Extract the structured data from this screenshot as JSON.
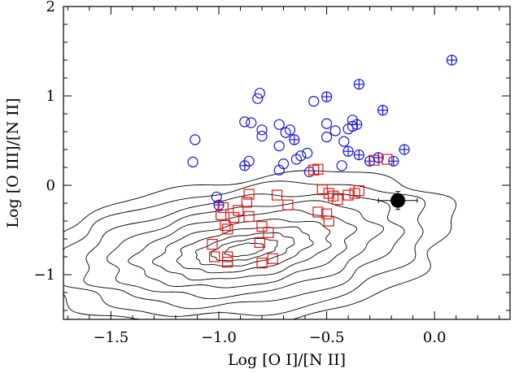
{
  "chart_data": {
    "type": "scatter",
    "xlabel": "Log [O I]/[N II]",
    "ylabel": "Log [O III]/[N II]",
    "xlim": [
      -1.72,
      0.35
    ],
    "ylim": [
      -1.5,
      2.0
    ],
    "x_ticks": [
      {
        "value": -1.5,
        "label": "−1.5"
      },
      {
        "value": -1.0,
        "label": "−1.0"
      },
      {
        "value": -0.5,
        "label": "−0.5"
      },
      {
        "value": 0.0,
        "label": "0.0"
      }
    ],
    "y_ticks": [
      {
        "value": -1,
        "label": "−1"
      },
      {
        "value": 0,
        "label": "0"
      },
      {
        "value": 1,
        "label": "1"
      },
      {
        "value": 2,
        "label": "2"
      }
    ],
    "grid": false,
    "legend": "none",
    "contours": {
      "color": "#000000",
      "center": [
        -0.88,
        -0.72
      ],
      "major_axis_angle_deg": 32,
      "levels": [
        {
          "a": 0.1,
          "b": 0.06
        },
        {
          "a": 0.17,
          "b": 0.1
        },
        {
          "a": 0.25,
          "b": 0.15
        },
        {
          "a": 0.34,
          "b": 0.21
        },
        {
          "a": 0.44,
          "b": 0.28
        },
        {
          "a": 0.55,
          "b": 0.36
        },
        {
          "a": 0.67,
          "b": 0.45
        },
        {
          "a": 0.79,
          "b": 0.55
        },
        {
          "a": 0.92,
          "b": 0.66
        },
        {
          "a": 1.05,
          "b": 0.77
        }
      ]
    },
    "series": [
      {
        "marker": "circle",
        "color": "#1515e0",
        "points": [
          [
            -1.11,
            0.51
          ],
          [
            -1.12,
            0.26
          ],
          [
            -1.01,
            -0.13
          ],
          [
            -0.88,
            0.71
          ],
          [
            -0.85,
            0.7
          ],
          [
            -0.82,
            0.97
          ],
          [
            -0.81,
            1.03
          ],
          [
            -0.8,
            0.62
          ],
          [
            -0.8,
            0.55
          ],
          [
            -0.86,
            0.27
          ],
          [
            -0.72,
            0.68
          ],
          [
            -0.69,
            0.59
          ],
          [
            -0.67,
            0.62
          ],
          [
            -0.72,
            0.44
          ],
          [
            -0.7,
            0.24
          ],
          [
            -0.72,
            0.17
          ],
          [
            -0.64,
            0.29
          ],
          [
            -0.62,
            0.33
          ],
          [
            -0.59,
            0.36
          ],
          [
            -0.58,
            0.15
          ],
          [
            -0.56,
            0.94
          ],
          [
            -0.5,
            0.69
          ],
          [
            -0.5,
            0.54
          ],
          [
            -0.46,
            0.61
          ],
          [
            -0.42,
            0.49
          ],
          [
            -0.43,
            0.22
          ],
          [
            -0.4,
            0.63
          ],
          [
            -0.38,
            0.73
          ],
          [
            -0.38,
            0.66
          ]
        ]
      },
      {
        "marker": "circle-cross",
        "color": "#1515e0",
        "points": [
          [
            -1.0,
            -0.22
          ],
          [
            -0.88,
            0.22
          ],
          [
            -0.65,
            0.51
          ],
          [
            -0.5,
            0.99
          ],
          [
            -0.4,
            0.38
          ],
          [
            -0.36,
            0.68
          ],
          [
            -0.35,
            1.13
          ],
          [
            -0.35,
            0.34
          ],
          [
            -0.3,
            0.27
          ],
          [
            -0.26,
            0.31
          ],
          [
            -0.24,
            0.84
          ],
          [
            -0.19,
            0.27
          ],
          [
            -0.14,
            0.4
          ],
          [
            0.08,
            1.4
          ]
        ]
      },
      {
        "marker": "square",
        "color": "#e01515",
        "points": [
          [
            -1.03,
            -0.66
          ],
          [
            -1.02,
            -0.8
          ],
          [
            -0.98,
            -0.25
          ],
          [
            -0.99,
            -0.33
          ],
          [
            -0.97,
            -0.45
          ],
          [
            -0.96,
            -0.49
          ],
          [
            -0.96,
            -0.86
          ],
          [
            -0.96,
            -0.8
          ],
          [
            -0.93,
            -0.36
          ],
          [
            -0.91,
            -0.28
          ],
          [
            -0.87,
            -0.19
          ],
          [
            -0.86,
            -0.1
          ],
          [
            -0.86,
            -0.35
          ],
          [
            -0.81,
            -0.64
          ],
          [
            -0.8,
            -0.46
          ],
          [
            -0.8,
            -0.87
          ],
          [
            -0.77,
            -0.53
          ],
          [
            -0.75,
            -0.82
          ],
          [
            -0.73,
            -0.11
          ],
          [
            -0.68,
            -0.22
          ],
          [
            -0.54,
            -0.3
          ],
          [
            -0.52,
            -0.05
          ],
          [
            -0.5,
            -0.32
          ],
          [
            -0.49,
            -0.4
          ],
          [
            -0.49,
            -0.09
          ],
          [
            -0.47,
            -0.12
          ],
          [
            -0.45,
            -0.16
          ],
          [
            -0.4,
            -0.11
          ],
          [
            -0.37,
            -0.09
          ],
          [
            -0.35,
            -0.06
          ],
          [
            -0.28,
            0.28
          ],
          [
            -0.22,
            0.29
          ],
          [
            -0.56,
            0.17
          ],
          [
            -0.54,
            0.18
          ]
        ]
      },
      {
        "marker": "filled-circle-errorbar",
        "color": "#000000",
        "points": [
          [
            -0.17,
            -0.17
          ]
        ],
        "xerr": 0.09,
        "yerr": 0.1
      }
    ]
  }
}
